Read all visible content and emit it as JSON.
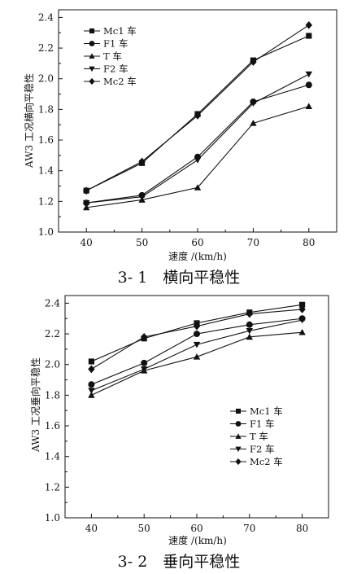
{
  "chart_data": [
    {
      "type": "line",
      "x": [
        40,
        50,
        60,
        70,
        80
      ],
      "xlabel": "速度 /(km/h)",
      "ylabel": "AW3 工况横向平稳性",
      "xlim": [
        35,
        85
      ],
      "ylim": [
        1.0,
        2.45
      ],
      "xticks": [
        "40",
        "50",
        "60",
        "70",
        "80"
      ],
      "yticks": [
        "1.0",
        "1.2",
        "1.4",
        "1.6",
        "1.8",
        "2.0",
        "2.2",
        "2.4"
      ],
      "caption": "3- 1　横向平稳性",
      "legend_position": "top-left",
      "series": [
        {
          "name": "Mc1 车",
          "marker": "square",
          "values": [
            1.27,
            1.45,
            1.77,
            2.12,
            2.28
          ]
        },
        {
          "name": "F1 车",
          "marker": "circle",
          "values": [
            1.19,
            1.24,
            1.49,
            1.85,
            1.96
          ]
        },
        {
          "name": "T 车",
          "marker": "triangle",
          "values": [
            1.16,
            1.21,
            1.29,
            1.71,
            1.82
          ]
        },
        {
          "name": "F2 车",
          "marker": "triangle-down",
          "values": [
            1.19,
            1.23,
            1.47,
            1.84,
            2.03
          ]
        },
        {
          "name": "Mc2 车",
          "marker": "diamond",
          "values": [
            1.27,
            1.46,
            1.76,
            2.11,
            2.35
          ]
        }
      ]
    },
    {
      "type": "line",
      "x": [
        40,
        50,
        60,
        70,
        80
      ],
      "xlabel": "速度 /(km/h)",
      "ylabel": "AW3 工况垂向平稳性",
      "xlim": [
        35,
        85
      ],
      "ylim": [
        1.0,
        2.45
      ],
      "xticks": [
        "40",
        "50",
        "60",
        "70",
        "80"
      ],
      "yticks": [
        "1.0",
        "1.2",
        "1.4",
        "1.6",
        "1.8",
        "2.0",
        "2.2",
        "2.4"
      ],
      "caption": "3- 2　垂向平稳性",
      "legend_position": "bottom-right",
      "series": [
        {
          "name": "Mc1 车",
          "marker": "square",
          "values": [
            2.02,
            2.17,
            2.27,
            2.34,
            2.39
          ]
        },
        {
          "name": "F1 车",
          "marker": "circle",
          "values": [
            1.87,
            2.01,
            2.2,
            2.26,
            2.3
          ]
        },
        {
          "name": "T 车",
          "marker": "triangle",
          "values": [
            1.8,
            1.96,
            2.05,
            2.18,
            2.21
          ]
        },
        {
          "name": "F2 车",
          "marker": "triangle-down",
          "values": [
            1.83,
            1.97,
            2.13,
            2.22,
            2.29
          ]
        },
        {
          "name": "Mc2 车",
          "marker": "diamond",
          "values": [
            1.97,
            2.18,
            2.25,
            2.33,
            2.36
          ]
        }
      ]
    }
  ]
}
